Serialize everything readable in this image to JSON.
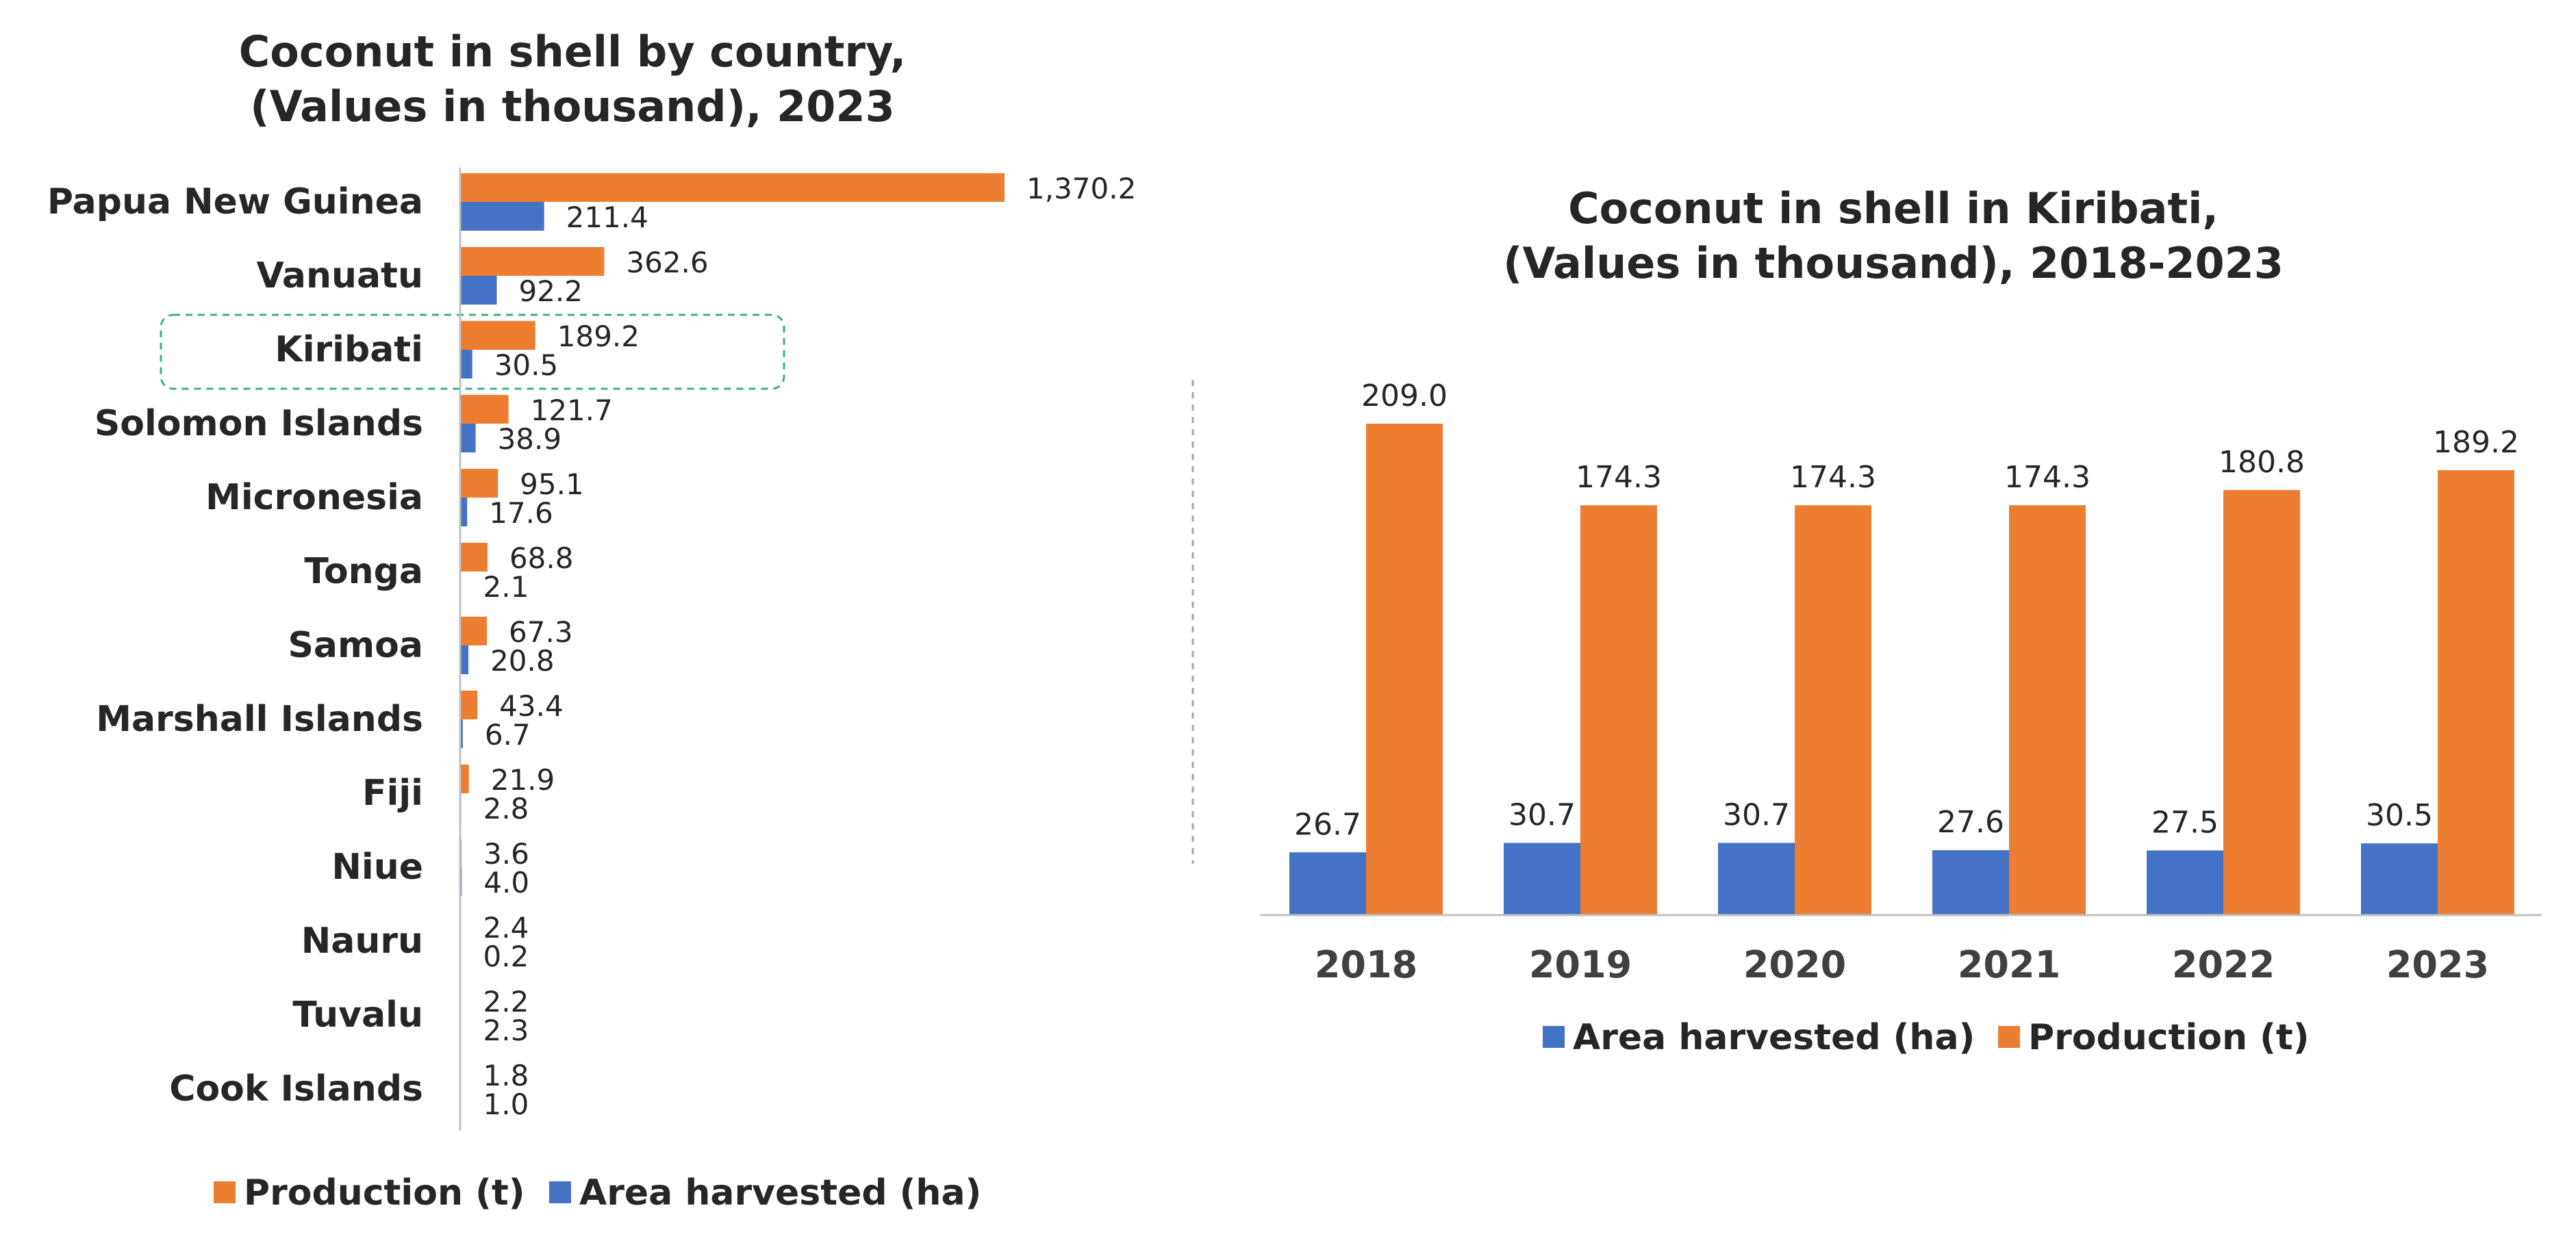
{
  "colors": {
    "production": "#ED7D31",
    "area": "#4472C4",
    "highlight": "#3CB371",
    "axis": "#BFBFBF"
  },
  "chart_data": [
    {
      "type": "bar",
      "orientation": "horizontal",
      "title_lines": [
        "Coconut in shell by country,",
        "(Values in thousand), 2023"
      ],
      "categories": [
        "Papua New Guinea",
        "Vanuatu",
        "Kiribati",
        "Solomon Islands",
        "Micronesia",
        "Tonga",
        "Samoa",
        "Marshall Islands",
        "Fiji",
        "Niue",
        "Nauru",
        "Tuvalu",
        "Cook Islands"
      ],
      "series": [
        {
          "name": "Production (t)",
          "values": [
            1370.2,
            362.6,
            189.2,
            121.7,
            95.1,
            68.8,
            67.3,
            43.4,
            21.9,
            3.6,
            2.4,
            2.2,
            1.8
          ]
        },
        {
          "name": "Area harvested (ha)",
          "values": [
            211.4,
            92.2,
            30.5,
            38.9,
            17.6,
            2.1,
            20.8,
            6.7,
            2.8,
            4.0,
            0.2,
            2.3,
            1.0
          ]
        }
      ],
      "labels": {
        "production": [
          "1,370.2",
          "362.6",
          "189.2",
          "121.7",
          "95.1",
          "68.8",
          "67.3",
          "43.4",
          "21.9",
          "3.6",
          "2.4",
          "2.2",
          "1.8"
        ],
        "area": [
          "211.4",
          "92.2",
          "30.5",
          "38.9",
          "17.6",
          "2.1",
          "20.8",
          "6.7",
          "2.8",
          "4.0",
          "0.2",
          "2.3",
          "1.0"
        ]
      },
      "highlighted_category": "Kiribati",
      "legend": [
        "Production (t)",
        "Area harvested (ha)"
      ],
      "legend_position": "bottom"
    },
    {
      "type": "bar",
      "orientation": "vertical",
      "title_lines": [
        "Coconut in shell in Kiribati,",
        "(Values in thousand), 2018-2023"
      ],
      "categories": [
        "2018",
        "2019",
        "2020",
        "2021",
        "2022",
        "2023"
      ],
      "series": [
        {
          "name": "Area harvested (ha)",
          "values": [
            26.7,
            30.7,
            30.7,
            27.6,
            27.5,
            30.5
          ]
        },
        {
          "name": "Production (t)",
          "values": [
            209.0,
            174.3,
            174.3,
            174.3,
            180.8,
            189.2
          ]
        }
      ],
      "labels": {
        "area": [
          "26.7",
          "30.7",
          "30.7",
          "27.6",
          "27.5",
          "30.5"
        ],
        "production": [
          "209.0",
          "174.3",
          "174.3",
          "174.3",
          "180.8",
          "189.2"
        ]
      },
      "legend": [
        "Area harvested (ha)",
        "Production (t)"
      ],
      "legend_position": "bottom"
    }
  ]
}
